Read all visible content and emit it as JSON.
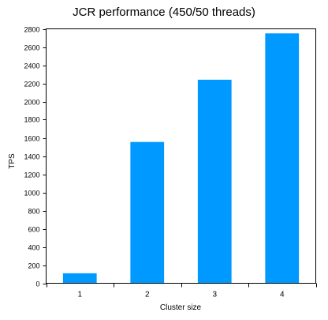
{
  "chart_data": {
    "type": "bar",
    "title": "JCR performance (450/50 threads)",
    "xlabel": "Cluster size",
    "ylabel": "TPS",
    "categories": [
      "1",
      "2",
      "3",
      "4"
    ],
    "series": [
      {
        "values": [
          110,
          1555,
          2240,
          2750
        ]
      }
    ],
    "ylim": [
      0,
      2800
    ],
    "yticks": [
      0,
      200,
      400,
      600,
      800,
      1000,
      1200,
      1400,
      1600,
      1800,
      2000,
      2200,
      2400,
      2600,
      2800
    ],
    "grid": false,
    "legend": "none",
    "bar_color": "#0099ff"
  }
}
